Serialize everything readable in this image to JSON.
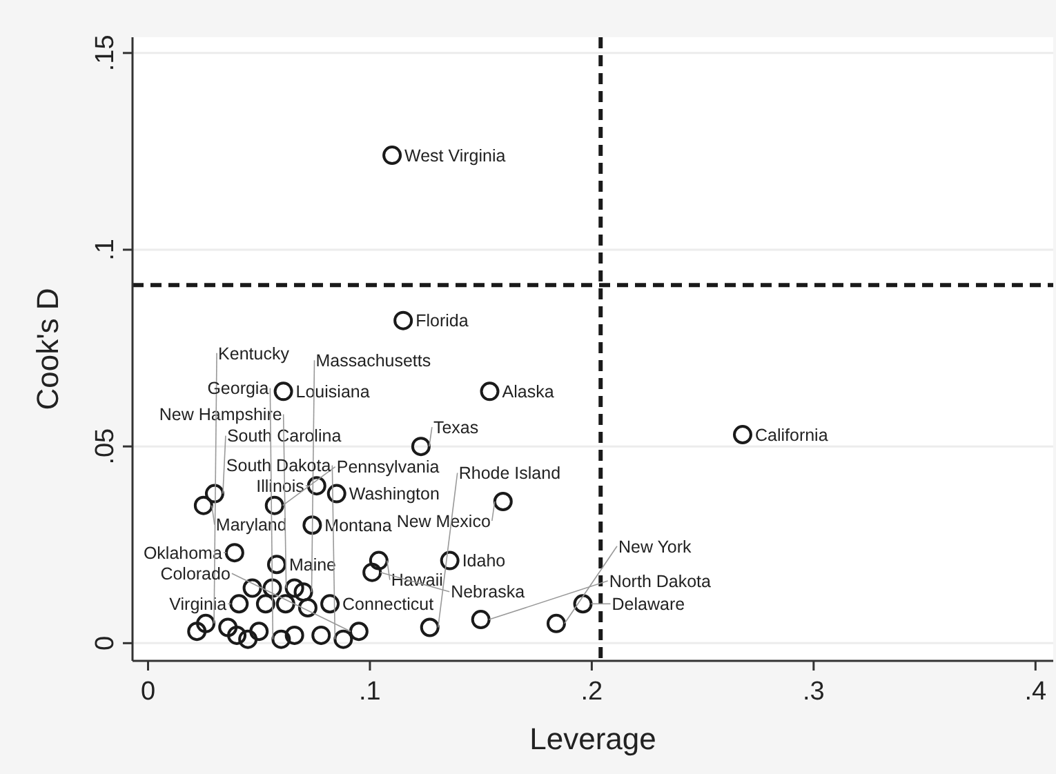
{
  "chart_data": {
    "type": "scatter",
    "xlabel": "Leverage",
    "ylabel": "Cook's D",
    "xlim": [
      -0.007,
      0.408
    ],
    "ylim": [
      -0.0045,
      0.154
    ],
    "xticks": [
      0,
      {
        "value": 0.1,
        "label": ".1"
      },
      {
        "value": 0.2,
        "label": ".2"
      },
      {
        "value": 0.3,
        "label": ".3"
      },
      {
        "value": 0.4,
        "label": ".4"
      }
    ],
    "yticks": [
      0,
      {
        "value": 0.05,
        "label": ".05"
      },
      {
        "value": 0.1,
        "label": ".1"
      },
      {
        "value": 0.15,
        "label": ".15"
      }
    ],
    "grid": "y",
    "marker": "circle",
    "series": [
      {
        "color": "#1a1a1a",
        "x": [
          0.11,
          0.115,
          0.061,
          0.154,
          0.123,
          0.268,
          0.16,
          0.076,
          0.03,
          0.025,
          0.057,
          0.085,
          0.074,
          0.039,
          0.058,
          0.104,
          0.101,
          0.136,
          0.066,
          0.07,
          0.041,
          0.082,
          0.196,
          0.15,
          0.184,
          0.127,
          0.026,
          0.095,
          0.088,
          0.06,
          0.036,
          0.04,
          0.045,
          0.05,
          0.022,
          0.066,
          0.078,
          0.053,
          0.062,
          0.072,
          0.047,
          0.056
        ],
        "values": [
          0.124,
          0.082,
          0.064,
          0.064,
          0.05,
          0.053,
          0.036,
          0.04,
          0.038,
          0.035,
          0.035,
          0.038,
          0.03,
          0.023,
          0.02,
          0.021,
          0.018,
          0.021,
          0.014,
          0.013,
          0.01,
          0.01,
          0.01,
          0.006,
          0.005,
          0.004,
          0.005,
          0.003,
          0.001,
          0.001,
          0.004,
          0.002,
          0.001,
          0.003,
          0.003,
          0.002,
          0.002,
          0.01,
          0.01,
          0.009,
          0.014,
          0.014
        ]
      }
    ],
    "ref_lines": [
      {
        "axis": "x",
        "value": 0.204,
        "line_style": "dashed",
        "color": "#1a1a1a"
      },
      {
        "axis": "y",
        "value": 0.091,
        "line_style": "dashed",
        "color": "#1a1a1a"
      }
    ],
    "annotations": [
      {
        "text": "West Virginia",
        "x": 0.11,
        "y": 0.124
      },
      {
        "text": "Florida",
        "x": 0.115,
        "y": 0.082
      },
      {
        "text": "Louisiana",
        "x": 0.061,
        "y": 0.064
      },
      {
        "text": "Alaska",
        "x": 0.154,
        "y": 0.064
      },
      {
        "text": "Texas",
        "x": 0.123,
        "y": 0.05
      },
      {
        "text": "California",
        "x": 0.268,
        "y": 0.053
      },
      {
        "text": "New Mexico",
        "x": 0.16,
        "y": 0.036
      },
      {
        "text": "Illinois",
        "x": 0.076,
        "y": 0.04
      },
      {
        "text": "South Carolina",
        "x": 0.03,
        "y": 0.038
      },
      {
        "text": "Maryland",
        "x": 0.025,
        "y": 0.035
      },
      {
        "text": "Pennsylvania",
        "x": 0.057,
        "y": 0.035
      },
      {
        "text": "Washington",
        "x": 0.085,
        "y": 0.038
      },
      {
        "text": "Montana",
        "x": 0.074,
        "y": 0.03
      },
      {
        "text": "Oklahoma",
        "x": 0.039,
        "y": 0.023
      },
      {
        "text": "Maine",
        "x": 0.058,
        "y": 0.02
      },
      {
        "text": "Hawaii",
        "x": 0.104,
        "y": 0.021
      },
      {
        "text": "Nebraska",
        "x": 0.101,
        "y": 0.018
      },
      {
        "text": "Idaho",
        "x": 0.136,
        "y": 0.021
      },
      {
        "text": "New Hampshire",
        "x": 0.066,
        "y": 0.014
      },
      {
        "text": "Massachusetts",
        "x": 0.07,
        "y": 0.013
      },
      {
        "text": "Virginia",
        "x": 0.041,
        "y": 0.01
      },
      {
        "text": "Connecticut",
        "x": 0.082,
        "y": 0.01
      },
      {
        "text": "Delaware",
        "x": 0.196,
        "y": 0.01
      },
      {
        "text": "North Dakota",
        "x": 0.15,
        "y": 0.006
      },
      {
        "text": "New York",
        "x": 0.184,
        "y": 0.005
      },
      {
        "text": "Rhode Island",
        "x": 0.127,
        "y": 0.004
      },
      {
        "text": "Kentucky",
        "x": 0.026,
        "y": 0.005
      },
      {
        "text": "Colorado",
        "x": 0.095,
        "y": 0.003
      },
      {
        "text": "South Dakota",
        "x": 0.088,
        "y": 0.001
      },
      {
        "text": "Georgia",
        "x": 0.06,
        "y": 0.001
      }
    ]
  }
}
